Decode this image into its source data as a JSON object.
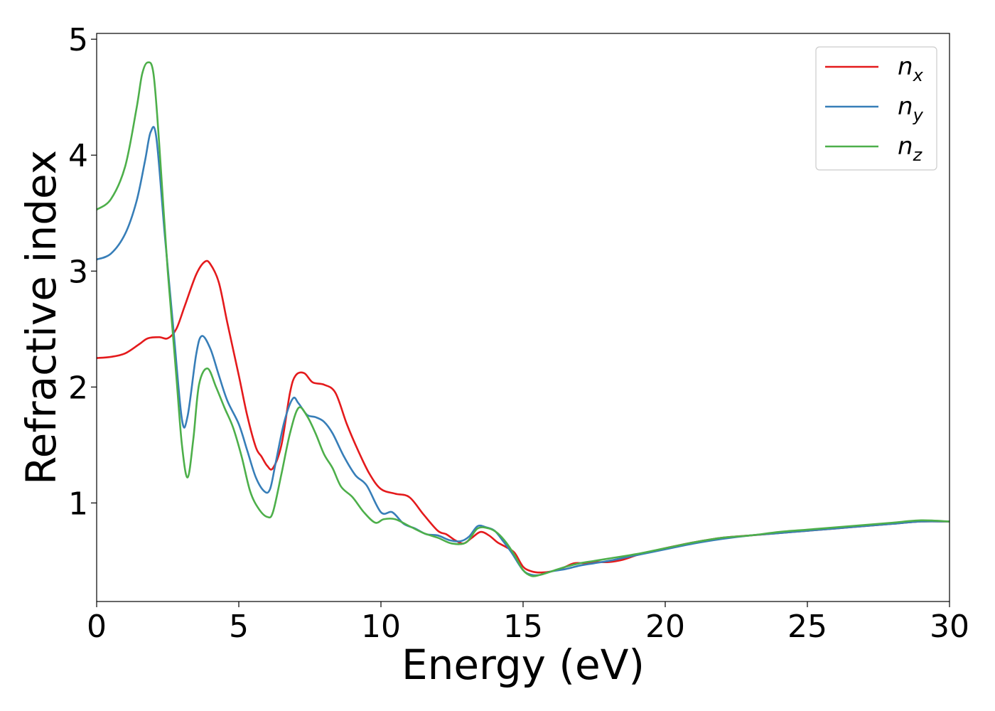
{
  "chart_data": {
    "type": "line",
    "xlabel": "Energy (eV)",
    "ylabel": "Refractive index",
    "xlim": [
      0,
      30
    ],
    "ylim": [
      0.15,
      5.05
    ],
    "xticks": [
      0,
      5,
      10,
      15,
      20,
      25,
      30
    ],
    "xtick_labels": [
      "0",
      "5",
      "10",
      "15",
      "20",
      "25",
      "30"
    ],
    "yticks": [
      1,
      2,
      3,
      4,
      5
    ],
    "ytick_labels": [
      "1",
      "2",
      "3",
      "4",
      "5"
    ],
    "grid": false,
    "legend_position": "top-right",
    "series": [
      {
        "name": "n_x",
        "label_base": "n",
        "label_sub": "x",
        "color": "#e41a1c",
        "x": [
          0,
          0.5,
          1.0,
          1.5,
          1.8,
          2.2,
          2.5,
          2.8,
          3.1,
          3.5,
          3.8,
          4.0,
          4.3,
          4.6,
          5.0,
          5.3,
          5.6,
          5.8,
          6.0,
          6.2,
          6.5,
          6.8,
          7.0,
          7.3,
          7.6,
          8.0,
          8.4,
          8.8,
          9.2,
          9.6,
          10.0,
          10.5,
          11.0,
          11.5,
          12.0,
          12.3,
          12.6,
          12.9,
          13.2,
          13.5,
          13.8,
          14.1,
          14.4,
          14.7,
          15.0,
          15.3,
          15.6,
          16.0,
          16.4,
          16.8,
          17.2,
          17.6,
          18.0,
          18.5,
          19.0,
          19.5,
          20.0,
          21.0,
          22.0,
          23.0,
          24.0,
          25.0,
          26.0,
          27.0,
          28.0,
          29.0,
          30.0
        ],
        "y": [
          2.25,
          2.26,
          2.29,
          2.37,
          2.42,
          2.43,
          2.42,
          2.5,
          2.7,
          2.97,
          3.08,
          3.06,
          2.9,
          2.55,
          2.1,
          1.75,
          1.48,
          1.4,
          1.32,
          1.3,
          1.5,
          1.95,
          2.1,
          2.12,
          2.04,
          2.02,
          1.95,
          1.68,
          1.45,
          1.25,
          1.12,
          1.08,
          1.05,
          0.9,
          0.76,
          0.73,
          0.68,
          0.65,
          0.7,
          0.75,
          0.72,
          0.66,
          0.62,
          0.57,
          0.45,
          0.41,
          0.4,
          0.41,
          0.44,
          0.48,
          0.48,
          0.49,
          0.49,
          0.51,
          0.55,
          0.58,
          0.61,
          0.66,
          0.7,
          0.72,
          0.74,
          0.76,
          0.78,
          0.8,
          0.82,
          0.84,
          0.84
        ]
      },
      {
        "name": "n_y",
        "label_base": "n",
        "label_sub": "y",
        "color": "#377eb8",
        "x": [
          0,
          0.5,
          1.0,
          1.4,
          1.7,
          1.9,
          2.1,
          2.4,
          2.7,
          3.0,
          3.2,
          3.5,
          3.7,
          4.0,
          4.3,
          4.6,
          5.0,
          5.3,
          5.6,
          5.9,
          6.1,
          6.3,
          6.6,
          6.9,
          7.1,
          7.4,
          7.7,
          8.0,
          8.3,
          8.7,
          9.1,
          9.5,
          10.0,
          10.4,
          10.8,
          11.2,
          11.6,
          12.0,
          12.4,
          12.8,
          13.1,
          13.4,
          13.7,
          14.0,
          14.3,
          14.6,
          15.0,
          15.3,
          15.6,
          16.0,
          16.5,
          17.0,
          17.5,
          18.0,
          19.0,
          20.0,
          21.0,
          22.0,
          23.0,
          24.0,
          25.0,
          26.0,
          27.0,
          28.0,
          29.0,
          30.0
        ],
        "y": [
          3.1,
          3.15,
          3.32,
          3.6,
          3.95,
          4.2,
          4.15,
          3.3,
          2.5,
          1.72,
          1.75,
          2.28,
          2.44,
          2.33,
          2.1,
          1.88,
          1.68,
          1.45,
          1.22,
          1.1,
          1.12,
          1.35,
          1.7,
          1.9,
          1.86,
          1.76,
          1.74,
          1.7,
          1.6,
          1.4,
          1.24,
          1.15,
          0.92,
          0.92,
          0.82,
          0.78,
          0.73,
          0.72,
          0.68,
          0.67,
          0.71,
          0.8,
          0.79,
          0.76,
          0.67,
          0.57,
          0.42,
          0.38,
          0.38,
          0.41,
          0.43,
          0.46,
          0.48,
          0.5,
          0.55,
          0.6,
          0.65,
          0.69,
          0.72,
          0.74,
          0.76,
          0.78,
          0.8,
          0.82,
          0.84,
          0.84
        ]
      },
      {
        "name": "n_z",
        "label_base": "n",
        "label_sub": "z",
        "color": "#4daf4a",
        "x": [
          0,
          0.5,
          1.0,
          1.4,
          1.6,
          1.8,
          2.0,
          2.2,
          2.5,
          2.8,
          3.0,
          3.2,
          3.4,
          3.6,
          3.9,
          4.2,
          4.5,
          4.8,
          5.1,
          5.4,
          5.7,
          6.0,
          6.2,
          6.5,
          6.8,
          7.1,
          7.4,
          7.7,
          8.0,
          8.3,
          8.6,
          9.0,
          9.4,
          9.8,
          10.1,
          10.5,
          11.0,
          11.5,
          12.0,
          12.5,
          13.0,
          13.4,
          13.8,
          14.1,
          14.4,
          14.7,
          15.0,
          15.3,
          15.6,
          16.0,
          16.5,
          17.0,
          17.5,
          18.0,
          19.0,
          20.0,
          21.0,
          22.0,
          23.0,
          24.0,
          25.0,
          26.0,
          27.0,
          28.0,
          29.0,
          30.0
        ],
        "y": [
          3.53,
          3.62,
          3.9,
          4.4,
          4.7,
          4.8,
          4.7,
          4.1,
          3.0,
          2.1,
          1.5,
          1.22,
          1.55,
          2.02,
          2.16,
          2.0,
          1.82,
          1.65,
          1.4,
          1.1,
          0.95,
          0.88,
          0.92,
          1.25,
          1.6,
          1.82,
          1.75,
          1.6,
          1.42,
          1.3,
          1.14,
          1.05,
          0.92,
          0.83,
          0.86,
          0.86,
          0.8,
          0.74,
          0.7,
          0.65,
          0.66,
          0.78,
          0.78,
          0.74,
          0.66,
          0.55,
          0.42,
          0.37,
          0.38,
          0.41,
          0.45,
          0.48,
          0.5,
          0.52,
          0.56,
          0.61,
          0.66,
          0.7,
          0.72,
          0.75,
          0.77,
          0.79,
          0.81,
          0.83,
          0.85,
          0.84
        ]
      }
    ]
  }
}
